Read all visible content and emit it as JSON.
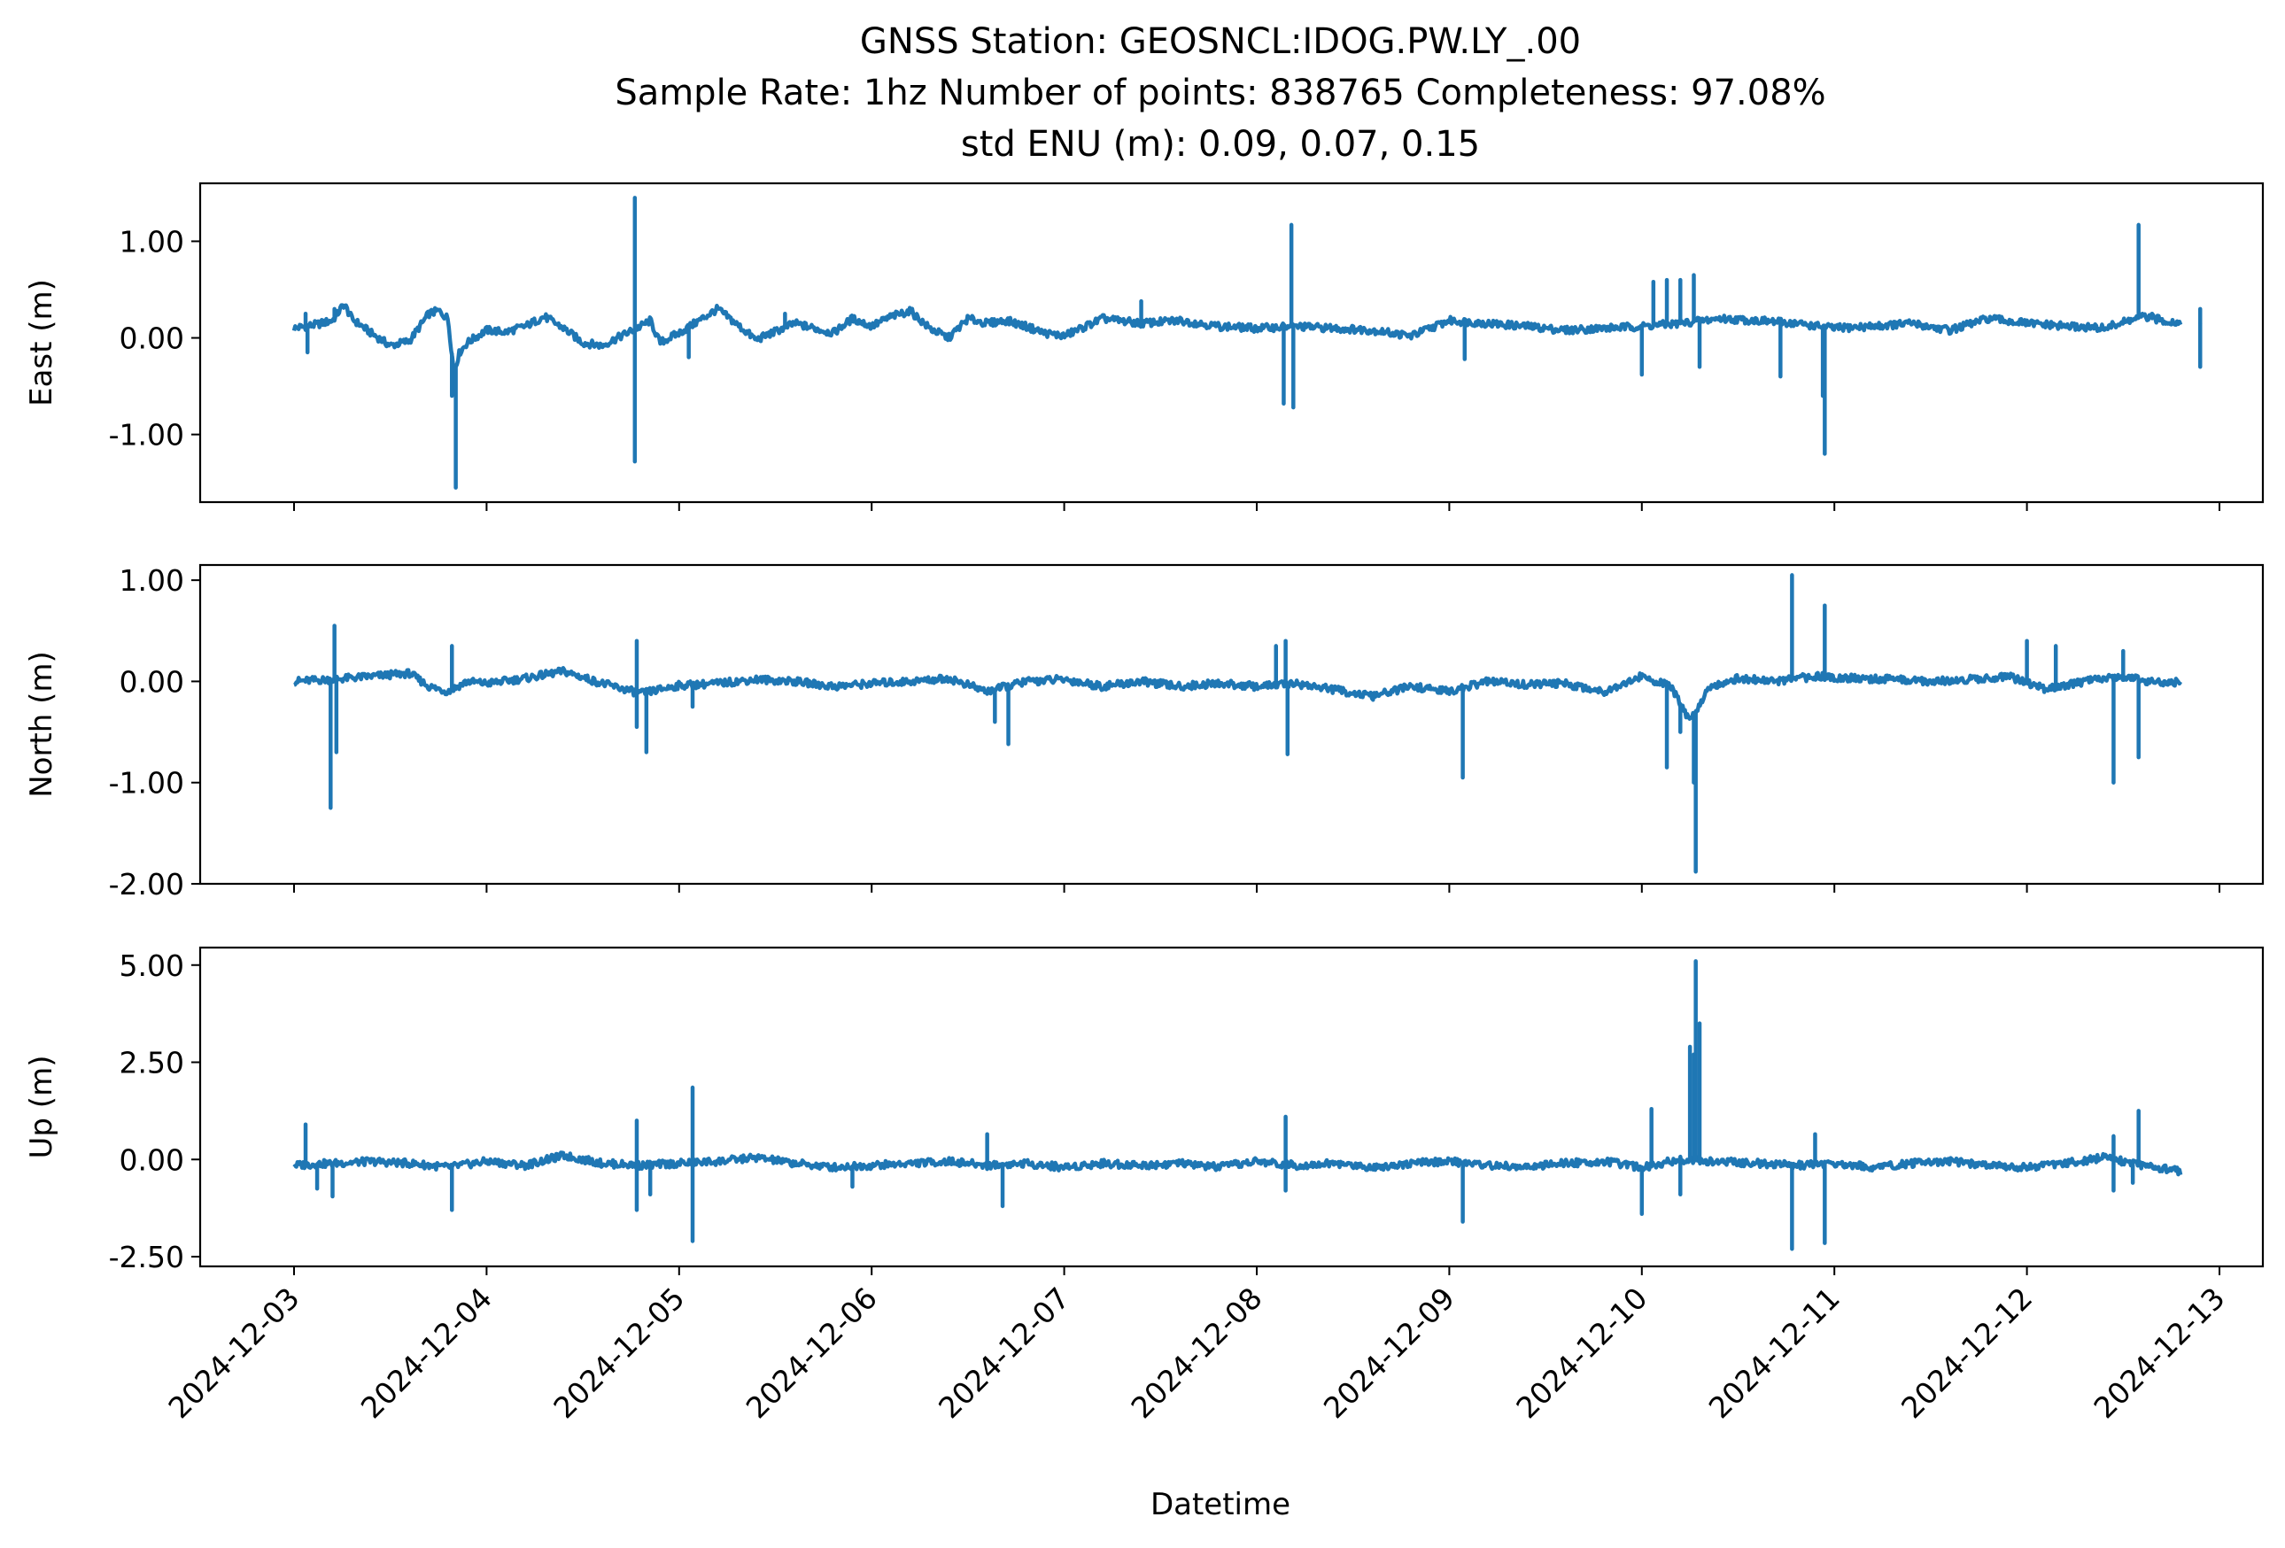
{
  "figure": {
    "title_lines": [
      "GNSS Station: GEOSNCL:IDOG.PW.LY_.00",
      "Sample Rate: 1hz   Number of points: 838765    Completeness:  97.08%",
      "std ENU (m):  0.09, 0.07, 0.15"
    ],
    "xlabel": "Datetime",
    "line_color": "#1f77b4"
  },
  "chart_data": [
    {
      "type": "line",
      "name": "east",
      "ylabel": "East (m)",
      "xlim": [
        "2024-12-02T21:36",
        "2024-12-13T03:00"
      ],
      "ylim": [
        -1.7,
        1.6
      ],
      "yticks": [
        -1.0,
        0.0,
        1.0
      ],
      "ytick_labels": [
        "-1.00",
        "0.00",
        "1.00"
      ],
      "xticks": [
        "2024-12-03",
        "2024-12-04",
        "2024-12-05",
        "2024-12-06",
        "2024-12-07",
        "2024-12-08",
        "2024-12-09",
        "2024-12-10",
        "2024-12-11",
        "2024-12-12",
        "2024-12-13"
      ],
      "x": [
        0,
        0.12,
        0.2,
        0.26,
        0.3,
        0.4,
        0.5,
        0.6,
        0.7,
        0.75,
        0.8,
        0.83,
        0.86,
        0.9,
        1.0,
        1.1,
        1.2,
        1.3,
        1.4,
        1.5,
        1.6,
        1.7,
        1.8,
        1.85,
        1.9,
        2.0,
        2.2,
        2.4,
        2.6,
        2.7,
        2.8,
        2.9,
        3.0,
        3.1,
        3.2,
        3.3,
        3.4,
        3.5,
        3.6,
        3.7,
        3.8,
        3.9,
        4.0,
        4.2,
        4.4,
        4.6,
        4.8,
        5.0,
        5.2,
        5.4,
        5.6,
        5.8,
        6.0,
        6.2,
        6.4,
        6.6,
        6.8,
        7.0,
        7.2,
        7.4,
        7.6,
        7.8,
        8.0,
        8.2,
        8.4,
        8.6,
        8.8,
        9.0,
        9.2,
        9.4,
        9.6,
        9.8
      ],
      "y": [
        0.1,
        0.14,
        0.18,
        0.35,
        0.2,
        0.05,
        -0.08,
        -0.03,
        0.25,
        0.28,
        0.2,
        -0.35,
        -0.15,
        -0.05,
        0.08,
        0.06,
        0.12,
        0.22,
        0.1,
        -0.05,
        -0.08,
        0.02,
        0.12,
        0.18,
        -0.05,
        0.05,
        0.3,
        -0.02,
        0.15,
        0.1,
        0.05,
        0.2,
        0.12,
        0.22,
        0.28,
        0.1,
        0.0,
        0.2,
        0.15,
        0.18,
        0.12,
        0.05,
        0.02,
        0.2,
        0.15,
        0.18,
        0.12,
        0.1,
        0.12,
        0.1,
        0.08,
        0.02,
        0.18,
        0.15,
        0.12,
        0.08,
        0.1,
        0.12,
        0.15,
        0.2,
        0.18,
        0.15,
        0.1,
        0.12,
        0.15,
        0.08,
        0.2,
        0.15,
        0.12,
        0.1,
        0.22,
        0.15
      ],
      "spikes": [
        [
          0.06,
          0.25
        ],
        [
          0.07,
          -0.15
        ],
        [
          0.21,
          0.3
        ],
        [
          0.82,
          -0.6
        ],
        [
          0.84,
          -1.55
        ],
        [
          1.77,
          1.45
        ],
        [
          1.77,
          -1.28
        ],
        [
          2.05,
          -0.2
        ],
        [
          2.55,
          0.25
        ],
        [
          4.4,
          0.38
        ],
        [
          5.14,
          -0.68
        ],
        [
          5.18,
          1.17
        ],
        [
          5.19,
          -0.72
        ],
        [
          6.08,
          -0.22
        ],
        [
          7.0,
          -0.38
        ],
        [
          7.06,
          0.58
        ],
        [
          7.13,
          0.6
        ],
        [
          7.2,
          0.6
        ],
        [
          7.27,
          0.65
        ],
        [
          7.3,
          -0.3
        ],
        [
          7.72,
          -0.4
        ],
        [
          7.94,
          -0.6
        ],
        [
          7.95,
          -1.2
        ],
        [
          9.58,
          1.17
        ],
        [
          9.65,
          0.25
        ],
        [
          9.9,
          -0.3
        ],
        [
          9.9,
          0.3
        ]
      ]
    },
    {
      "type": "line",
      "name": "north",
      "ylabel": "North (m)",
      "xlim": [
        "2024-12-02T21:36",
        "2024-12-13T03:00"
      ],
      "ylim": [
        -2.0,
        1.15
      ],
      "yticks": [
        -2.0,
        -1.0,
        0.0,
        1.0
      ],
      "ytick_labels": [
        "-2.00",
        "-1.00",
        "0.00",
        "1.00"
      ],
      "xticks": [
        "2024-12-03",
        "2024-12-04",
        "2024-12-05",
        "2024-12-06",
        "2024-12-07",
        "2024-12-08",
        "2024-12-09",
        "2024-12-10",
        "2024-12-11",
        "2024-12-12",
        "2024-12-13"
      ],
      "x": [
        0,
        0.2,
        0.4,
        0.6,
        0.7,
        0.8,
        0.9,
        1.0,
        1.2,
        1.4,
        1.6,
        1.8,
        2.0,
        2.2,
        2.4,
        2.6,
        2.8,
        3.0,
        3.2,
        3.4,
        3.6,
        3.8,
        4.0,
        4.2,
        4.4,
        4.6,
        4.8,
        5.0,
        5.2,
        5.4,
        5.6,
        5.8,
        6.0,
        6.2,
        6.4,
        6.6,
        6.8,
        7.0,
        7.15,
        7.25,
        7.35,
        7.5,
        7.7,
        7.9,
        8.1,
        8.3,
        8.5,
        8.7,
        8.9,
        9.1,
        9.3,
        9.5,
        9.7,
        9.8
      ],
      "y": [
        0.0,
        0.02,
        0.05,
        0.08,
        -0.05,
        -0.1,
        0.0,
        -0.02,
        0.03,
        0.1,
        -0.02,
        -0.12,
        -0.04,
        -0.02,
        0.02,
        0.0,
        -0.05,
        -0.02,
        0.0,
        0.03,
        -0.1,
        0.0,
        0.02,
        -0.05,
        0.0,
        -0.05,
        -0.02,
        -0.05,
        -0.02,
        -0.08,
        -0.15,
        -0.05,
        -0.1,
        0.0,
        -0.03,
        -0.02,
        -0.1,
        0.05,
        -0.05,
        -0.4,
        -0.05,
        0.03,
        0.0,
        0.05,
        0.03,
        0.02,
        0.0,
        0.02,
        0.05,
        -0.08,
        0.0,
        0.05,
        -0.02,
        0.0
      ],
      "spikes": [
        [
          0.19,
          -1.25
        ],
        [
          0.21,
          0.55
        ],
        [
          0.22,
          -0.7
        ],
        [
          0.82,
          0.35
        ],
        [
          1.78,
          0.4
        ],
        [
          1.78,
          -0.45
        ],
        [
          1.83,
          -0.7
        ],
        [
          2.07,
          -0.25
        ],
        [
          3.64,
          -0.4
        ],
        [
          3.71,
          -0.62
        ],
        [
          5.1,
          0.35
        ],
        [
          5.15,
          0.4
        ],
        [
          5.16,
          -0.72
        ],
        [
          6.07,
          -0.95
        ],
        [
          7.13,
          -0.85
        ],
        [
          7.2,
          -0.5
        ],
        [
          7.27,
          -1.0
        ],
        [
          7.28,
          -1.88
        ],
        [
          7.78,
          1.05
        ],
        [
          7.95,
          0.75
        ],
        [
          7.95,
          0.1
        ],
        [
          9.0,
          0.4
        ],
        [
          9.15,
          0.35
        ],
        [
          9.45,
          -1.0
        ],
        [
          9.5,
          0.3
        ],
        [
          9.58,
          -0.75
        ]
      ]
    },
    {
      "type": "line",
      "name": "up",
      "ylabel": "Up (m)",
      "xlim": [
        "2024-12-02T21:36",
        "2024-12-13T03:00"
      ],
      "ylim": [
        -2.75,
        5.45
      ],
      "yticks": [
        -2.5,
        0.0,
        2.5,
        5.0
      ],
      "ytick_labels": [
        "-2.50",
        "0.00",
        "2.50",
        "5.00"
      ],
      "xticks": [
        "2024-12-03",
        "2024-12-04",
        "2024-12-05",
        "2024-12-06",
        "2024-12-07",
        "2024-12-08",
        "2024-12-09",
        "2024-12-10",
        "2024-12-11",
        "2024-12-12",
        "2024-12-13"
      ],
      "x": [
        0,
        0.2,
        0.4,
        0.6,
        0.8,
        1.0,
        1.2,
        1.4,
        1.6,
        1.8,
        2.0,
        2.2,
        2.4,
        2.6,
        2.8,
        3.0,
        3.2,
        3.4,
        3.6,
        3.8,
        4.0,
        4.2,
        4.4,
        4.6,
        4.8,
        5.0,
        5.2,
        5.4,
        5.6,
        5.8,
        6.0,
        6.2,
        6.4,
        6.6,
        6.8,
        7.0,
        7.2,
        7.4,
        7.6,
        7.8,
        8.0,
        8.2,
        8.4,
        8.6,
        8.8,
        9.0,
        9.2,
        9.4,
        9.6,
        9.8
      ],
      "y": [
        -0.15,
        -0.1,
        -0.05,
        -0.1,
        -0.2,
        -0.05,
        -0.15,
        0.1,
        -0.1,
        -0.15,
        -0.1,
        -0.05,
        0.05,
        -0.1,
        -0.2,
        -0.15,
        -0.1,
        -0.05,
        -0.15,
        -0.1,
        -0.2,
        -0.1,
        -0.15,
        -0.1,
        -0.2,
        -0.05,
        -0.15,
        -0.1,
        -0.2,
        -0.1,
        -0.05,
        -0.15,
        -0.2,
        -0.1,
        -0.05,
        -0.2,
        0.0,
        -0.05,
        -0.1,
        -0.15,
        -0.1,
        -0.2,
        -0.1,
        -0.05,
        -0.15,
        -0.2,
        -0.1,
        0.05,
        -0.15,
        -0.3
      ],
      "spikes": [
        [
          0.06,
          0.9
        ],
        [
          0.12,
          -0.75
        ],
        [
          0.2,
          -0.95
        ],
        [
          0.82,
          -1.3
        ],
        [
          1.78,
          1.0
        ],
        [
          1.78,
          -1.3
        ],
        [
          1.85,
          -0.9
        ],
        [
          2.07,
          1.85
        ],
        [
          2.07,
          -2.1
        ],
        [
          2.9,
          -0.7
        ],
        [
          3.6,
          0.65
        ],
        [
          3.68,
          -1.2
        ],
        [
          5.15,
          1.1
        ],
        [
          5.15,
          -0.8
        ],
        [
          6.07,
          -1.6
        ],
        [
          7.0,
          -1.4
        ],
        [
          7.05,
          1.3
        ],
        [
          7.25,
          2.9
        ],
        [
          7.27,
          2.7
        ],
        [
          7.28,
          5.1
        ],
        [
          7.3,
          3.5
        ],
        [
          7.2,
          -0.9
        ],
        [
          7.78,
          -2.3
        ],
        [
          7.95,
          -2.15
        ],
        [
          7.9,
          0.65
        ],
        [
          9.58,
          1.25
        ],
        [
          9.55,
          -0.6
        ],
        [
          9.45,
          0.6
        ],
        [
          9.45,
          -0.8
        ]
      ]
    }
  ]
}
